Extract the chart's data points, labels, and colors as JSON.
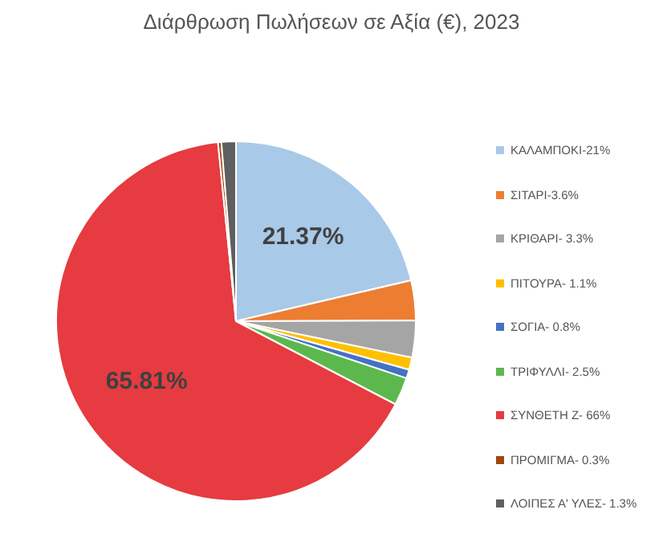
{
  "chart_data": {
    "type": "pie",
    "title": "Διάρθρωση Πωλήσεων σε Αξία (€), 2023",
    "categories": [
      "ΚΑΛΑΜΠΟΚΙ-21%",
      "ΣΙΤΑΡΙ-3.6%",
      "ΚΡΙΘΑΡΙ- 3.3%",
      "ΠΙΤΟΥΡΑ- 1.1%",
      "ΣΟΓΙΑ- 0.8%",
      "ΤΡΙΦΥΛΛΙ- 2.5%",
      "ΣΥΝΘΕΤΗ Ζ- 66%",
      "ΠΡΟΜΙΓΜΑ- 0.3%",
      "ΛΟΙΠΕΣ Α' ΥΛΕΣ- 1.3%"
    ],
    "values": [
      21.37,
      3.6,
      3.3,
      1.1,
      0.8,
      2.5,
      65.81,
      0.3,
      1.3
    ],
    "colors": [
      "#a9c9e8",
      "#ed7d31",
      "#a5a5a5",
      "#ffc000",
      "#4472c4",
      "#5cb84c",
      "#e63b40",
      "#9e480e",
      "#5f5f5f"
    ],
    "value_labels": [
      "21.37%",
      null,
      null,
      null,
      null,
      null,
      "65.81%",
      null,
      null
    ],
    "legend": "right"
  }
}
